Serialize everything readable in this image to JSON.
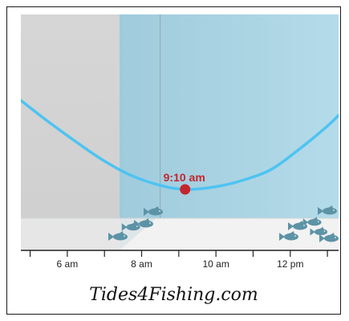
{
  "chart_data": {
    "type": "line",
    "title": "",
    "xlabel": "",
    "ylabel": "",
    "x_axis": {
      "unit": "hours",
      "range": [
        4.75,
        13.3
      ],
      "ticks": [
        {
          "value": 6,
          "label": "6 am"
        },
        {
          "value": 8,
          "label": "8 am"
        },
        {
          "value": 10,
          "label": "10 am"
        },
        {
          "value": 12,
          "label": "12 pm"
        }
      ]
    },
    "series": [
      {
        "name": "",
        "color": "#4ec3f2",
        "points": [
          {
            "x": 4.75,
            "y": 0.66
          },
          {
            "x": 5.5,
            "y": 0.5
          },
          {
            "x": 6.25,
            "y": 0.35
          },
          {
            "x": 7.0,
            "y": 0.21
          },
          {
            "x": 7.75,
            "y": 0.1
          },
          {
            "x": 8.5,
            "y": 0.03
          },
          {
            "x": 9.17,
            "y": 0.0
          },
          {
            "x": 10.0,
            "y": 0.02
          },
          {
            "x": 10.75,
            "y": 0.07
          },
          {
            "x": 11.5,
            "y": 0.15
          },
          {
            "x": 12.25,
            "y": 0.3
          },
          {
            "x": 13.0,
            "y": 0.47
          },
          {
            "x": 13.3,
            "y": 0.55
          }
        ]
      }
    ],
    "annotation": {
      "x": 9.17,
      "y": 0.0,
      "label": "9:10 am",
      "color": "#c4262d"
    },
    "night_band": {
      "x_start": 4.75,
      "x_end": 7.4,
      "color": "#cfcfcf"
    },
    "day_color": "#a9d3e3",
    "current_time_line": {
      "x": 8.5
    },
    "fish_icon": "fish-icon",
    "grid": false
  },
  "caption": "Tides4Fishing.com"
}
